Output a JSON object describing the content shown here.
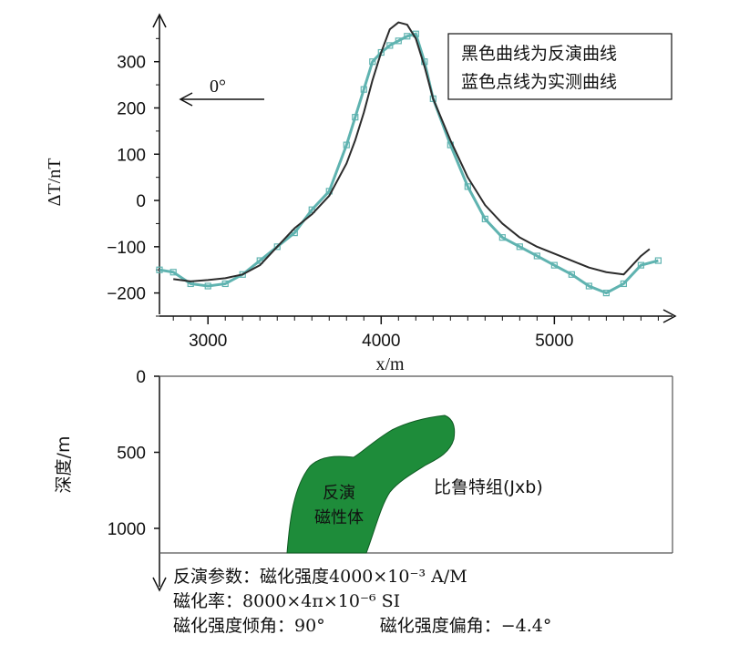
{
  "chart_data": [
    {
      "type": "line",
      "ylabel": "ΔT/nT",
      "xlabel": "x/m",
      "xlim": [
        2720,
        5640
      ],
      "ylim": [
        -250,
        390
      ],
      "x_ticks": [
        3000,
        4000,
        5000
      ],
      "y_ticks": [
        300,
        200,
        100,
        0,
        -100,
        -200
      ],
      "legend": [
        "黑色曲线为反演曲线",
        "蓝色点线为实测曲线"
      ],
      "legend_position": "top-right",
      "annotation": "0°",
      "series": [
        {
          "name": "反演曲线",
          "color": "#2b2b2b",
          "x": [
            2800,
            2900,
            3000,
            3100,
            3200,
            3300,
            3400,
            3500,
            3600,
            3700,
            3800,
            3850,
            3900,
            3950,
            4000,
            4050,
            4100,
            4150,
            4200,
            4250,
            4300,
            4400,
            4500,
            4600,
            4700,
            4800,
            4900,
            5000,
            5100,
            5200,
            5300,
            5400,
            5500,
            5550
          ],
          "y": [
            -170,
            -175,
            -172,
            -168,
            -160,
            -140,
            -100,
            -60,
            -30,
            10,
            80,
            130,
            190,
            260,
            320,
            370,
            385,
            380,
            350,
            290,
            220,
            130,
            50,
            -10,
            -50,
            -80,
            -100,
            -115,
            -130,
            -145,
            -155,
            -160,
            -120,
            -105
          ]
        },
        {
          "name": "实测曲线",
          "color": "#5fb3b0",
          "x": [
            2720,
            2800,
            2900,
            3000,
            3100,
            3200,
            3300,
            3400,
            3500,
            3600,
            3700,
            3800,
            3850,
            3900,
            3950,
            4000,
            4050,
            4100,
            4150,
            4200,
            4250,
            4300,
            4400,
            4500,
            4600,
            4700,
            4800,
            4900,
            5000,
            5100,
            5200,
            5300,
            5400,
            5500,
            5600
          ],
          "y": [
            -150,
            -155,
            -180,
            -185,
            -180,
            -160,
            -130,
            -100,
            -70,
            -20,
            20,
            120,
            180,
            240,
            300,
            320,
            335,
            345,
            355,
            360,
            300,
            220,
            120,
            30,
            -40,
            -80,
            -100,
            -120,
            -140,
            -160,
            -185,
            -200,
            -180,
            -140,
            -130
          ]
        }
      ]
    },
    {
      "type": "section",
      "ylabel": "深度/m",
      "ylim": [
        1150,
        0
      ],
      "y_ticks": [
        0,
        500,
        1000
      ],
      "body_label": [
        "反演",
        "磁性体"
      ],
      "formation_label": "比鲁特组(Jxb)",
      "body_color": "#1e8c3a"
    }
  ],
  "params": {
    "line1_label": "反演参数：磁化强度",
    "line1_value": "4000×10⁻³ A/M",
    "line2_label": "磁化率：",
    "line2_value": "8000×4π×10⁻⁶ SI",
    "line3_a_label": "磁化强度倾角：",
    "line3_a_value": "90°",
    "line3_b_label": "磁化强度偏角：",
    "line3_b_value": "−4.4°"
  }
}
